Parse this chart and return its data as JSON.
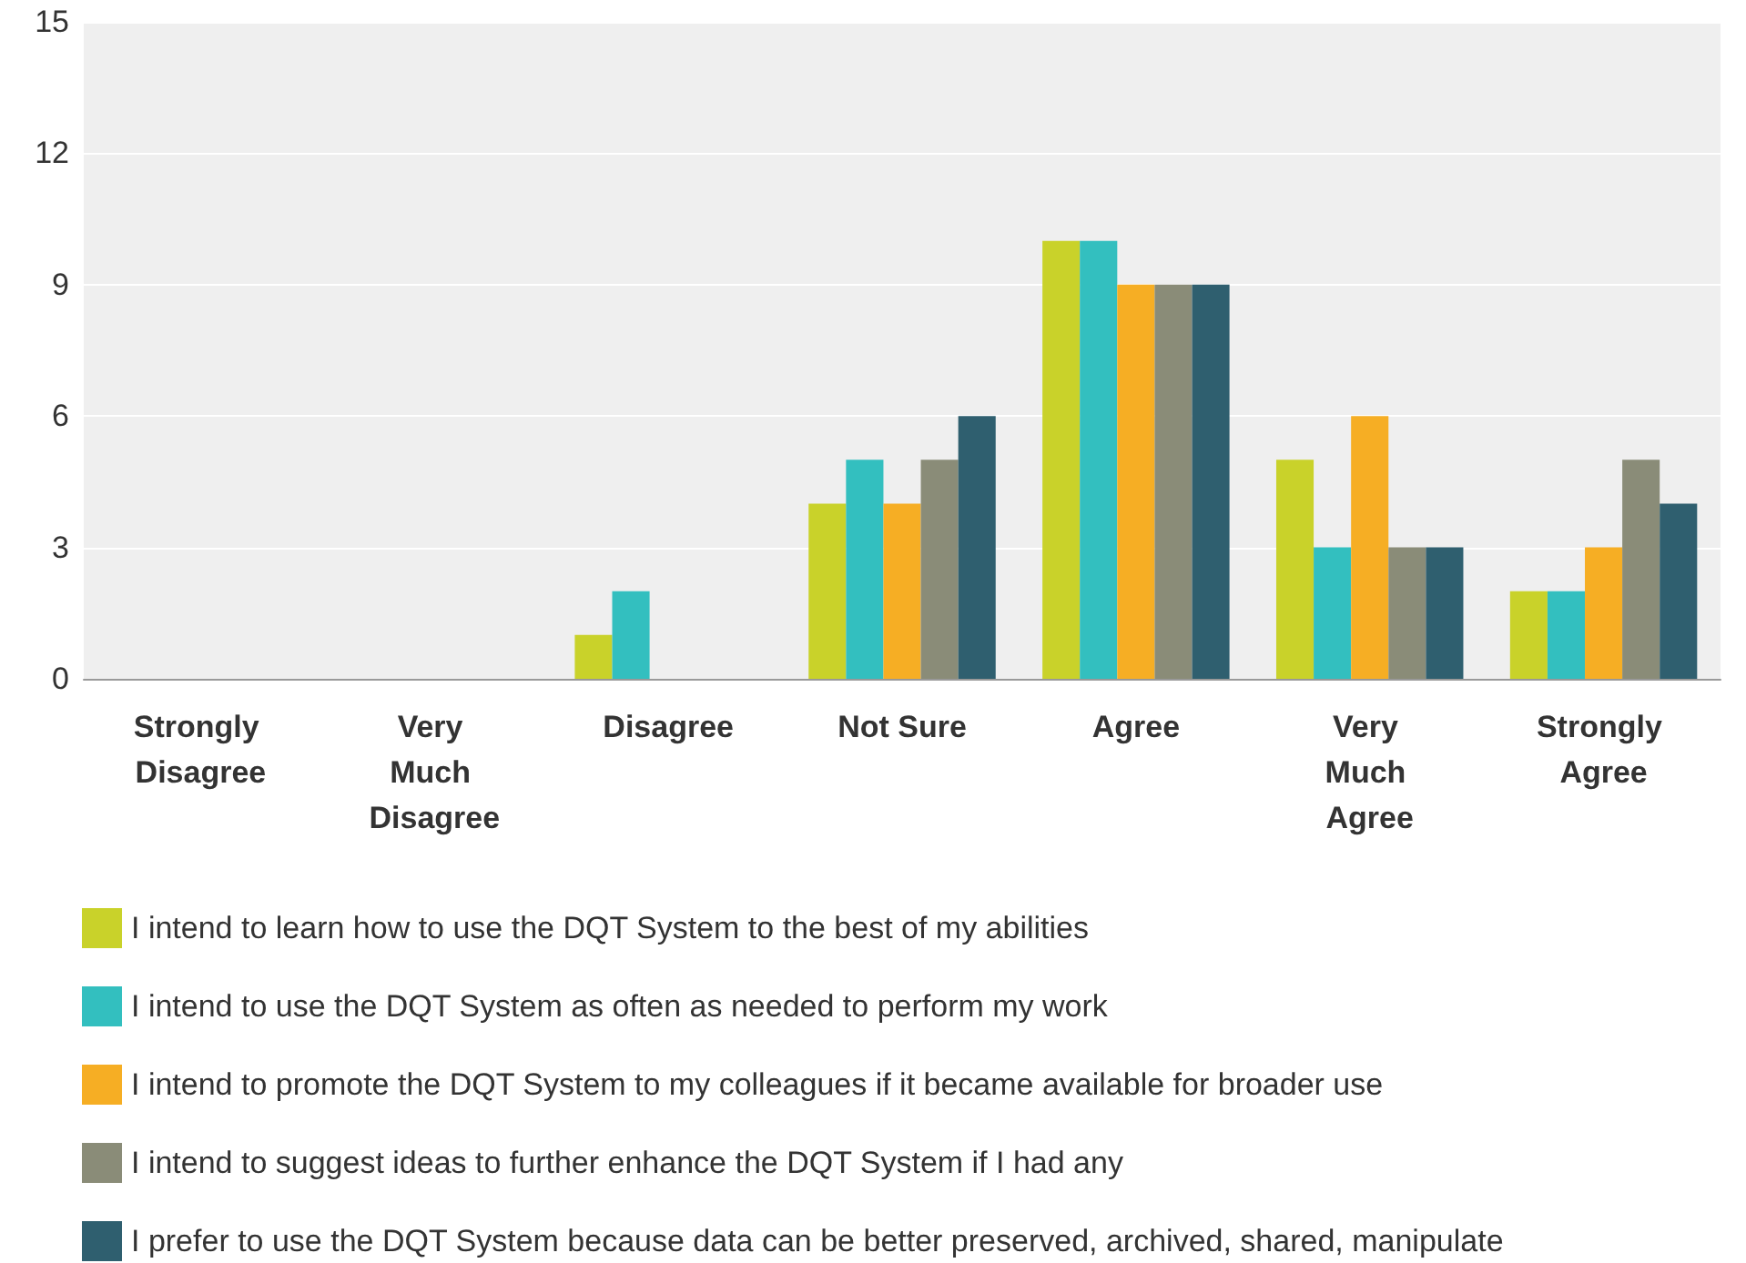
{
  "chart_data": {
    "type": "bar",
    "categories": [
      "Strongly Disagree",
      "Very Much Disagree",
      "Disagree",
      "Not Sure",
      "Agree",
      "Very Much Agree",
      "Strongly Agree"
    ],
    "series": [
      {
        "name": "I intend to learn how to use the DQT System to the best of my abilities",
        "color": "#c9d22a",
        "values": [
          0,
          0,
          1,
          4,
          10,
          5,
          2
        ]
      },
      {
        "name": "I intend to use the DQT System as often as needed to perform my work",
        "color": "#33bfbf",
        "values": [
          0,
          0,
          2,
          5,
          10,
          3,
          2
        ]
      },
      {
        "name": "I intend to promote the DQT System to my colleagues if it became available for broader use",
        "color": "#f6ae24",
        "values": [
          0,
          0,
          0,
          4,
          9,
          6,
          3
        ]
      },
      {
        "name": "I intend to suggest ideas to further enhance the DQT System if I had any",
        "color": "#8a8c78",
        "values": [
          0,
          0,
          0,
          5,
          9,
          3,
          5
        ]
      },
      {
        "name": "I prefer to use the DQT System because data can be better preserved, archived, shared, manipulate",
        "color": "#2f5f6f",
        "values": [
          0,
          0,
          0,
          6,
          9,
          3,
          4
        ]
      }
    ],
    "ylim": [
      0,
      15
    ],
    "yticks": [
      0,
      3,
      6,
      9,
      12,
      15
    ],
    "grid": "y",
    "legend": "bottom"
  }
}
